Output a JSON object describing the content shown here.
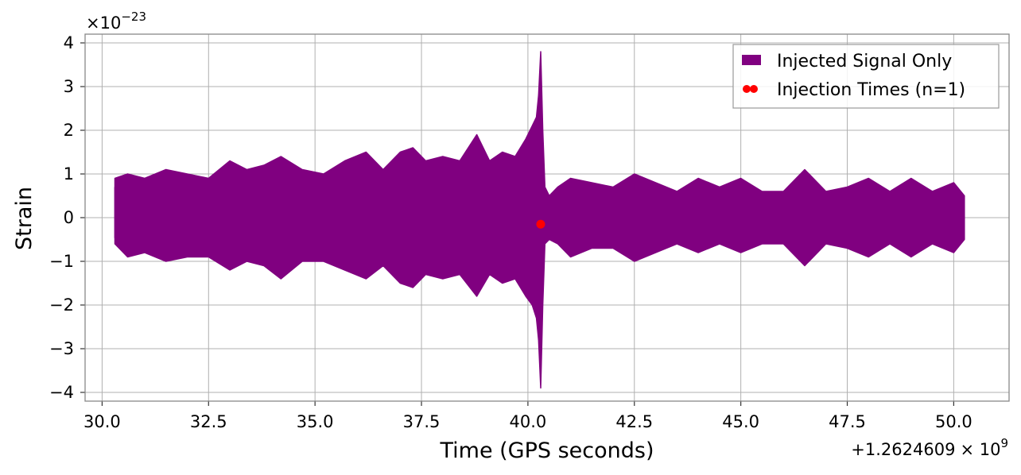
{
  "chart_data": {
    "type": "line",
    "title": "",
    "xlabel": "Time (GPS seconds)",
    "ylabel": "Strain",
    "x_offset_label": "+1.2624609",
    "x_offset_suffix": "× 10",
    "x_offset_exponent": "9",
    "y_scale_label": "×10",
    "y_scale_exponent": "−23",
    "xlim": [
      29.6,
      51.3
    ],
    "ylim": [
      -4.2,
      4.2
    ],
    "xticks": [
      30.0,
      32.5,
      35.0,
      37.5,
      40.0,
      42.5,
      45.0,
      47.5,
      50.0
    ],
    "xtick_labels": [
      "30.0",
      "32.5",
      "35.0",
      "37.5",
      "40.0",
      "42.5",
      "45.0",
      "47.5",
      "50.0"
    ],
    "yticks": [
      -4,
      -3,
      -2,
      -1,
      0,
      1,
      2,
      3,
      4
    ],
    "ytick_labels": [
      "−4",
      "−3",
      "−2",
      "−1",
      "0",
      "1",
      "2",
      "3",
      "4"
    ],
    "grid": true,
    "legend_position": "top-right",
    "series": [
      {
        "name": "Injected Signal Only",
        "kind": "envelope",
        "color": "#800080",
        "x": [
          30.3,
          30.6,
          31.0,
          31.5,
          32.0,
          32.5,
          33.0,
          33.4,
          33.8,
          34.2,
          34.7,
          35.2,
          35.7,
          36.2,
          36.6,
          37.0,
          37.3,
          37.6,
          38.0,
          38.4,
          38.8,
          39.1,
          39.4,
          39.7,
          39.95,
          40.1,
          40.2,
          40.25,
          40.3,
          40.35,
          40.4,
          40.5,
          40.7,
          41.0,
          41.5,
          42.0,
          42.5,
          43.0,
          43.5,
          44.0,
          44.5,
          45.0,
          45.5,
          46.0,
          46.5,
          47.0,
          47.5,
          48.0,
          48.5,
          49.0,
          49.5,
          50.0,
          50.25
        ],
        "upper": [
          0.9,
          1.0,
          0.9,
          1.1,
          1.0,
          0.9,
          1.3,
          1.1,
          1.2,
          1.4,
          1.1,
          1.0,
          1.3,
          1.5,
          1.1,
          1.5,
          1.6,
          1.3,
          1.4,
          1.3,
          1.9,
          1.3,
          1.5,
          1.4,
          1.8,
          2.1,
          2.3,
          2.8,
          3.8,
          2.0,
          0.7,
          0.5,
          0.7,
          0.9,
          0.8,
          0.7,
          1.0,
          0.8,
          0.6,
          0.9,
          0.7,
          0.9,
          0.6,
          0.6,
          1.1,
          0.6,
          0.7,
          0.9,
          0.6,
          0.9,
          0.6,
          0.8,
          0.5
        ],
        "lower": [
          -0.6,
          -0.9,
          -0.8,
          -1.0,
          -0.9,
          -0.9,
          -1.2,
          -1.0,
          -1.1,
          -1.4,
          -1.0,
          -1.0,
          -1.2,
          -1.4,
          -1.1,
          -1.5,
          -1.6,
          -1.3,
          -1.4,
          -1.3,
          -1.8,
          -1.3,
          -1.5,
          -1.4,
          -1.8,
          -2.0,
          -2.3,
          -2.8,
          -3.9,
          -2.0,
          -0.6,
          -0.5,
          -0.6,
          -0.9,
          -0.7,
          -0.7,
          -1.0,
          -0.8,
          -0.6,
          -0.8,
          -0.6,
          -0.8,
          -0.6,
          -0.6,
          -1.1,
          -0.6,
          -0.7,
          -0.9,
          -0.6,
          -0.9,
          -0.6,
          -0.8,
          -0.5
        ]
      },
      {
        "name": "Injection Times (n=1)",
        "kind": "scatter",
        "color": "#ff0000",
        "x": [
          40.3
        ],
        "y": [
          -0.15
        ]
      }
    ]
  }
}
